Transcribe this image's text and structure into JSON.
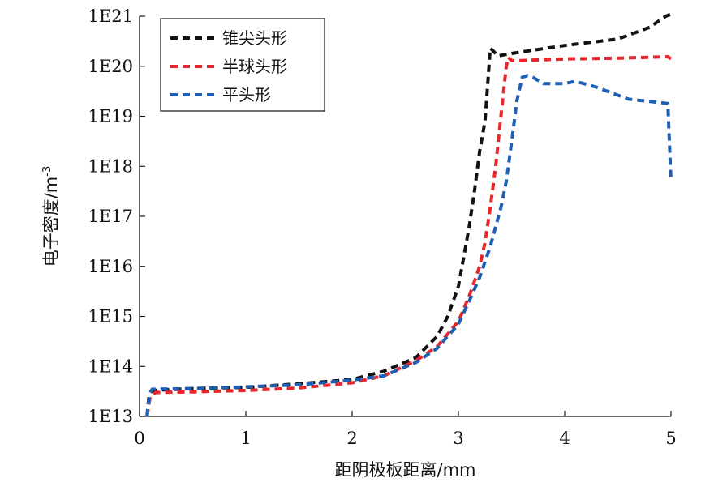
{
  "chart_data": {
    "type": "line",
    "xlabel": "距阴极板距离/mm",
    "ylabel": "电子密度/m",
    "ylabel_sup": "-3",
    "x_scale": "linear",
    "y_scale": "log",
    "xlim": [
      0,
      5
    ],
    "ylim": [
      10000000000000.0,
      1e+21
    ],
    "x_ticks": [
      0,
      1,
      2,
      3,
      4,
      5
    ],
    "x_tick_labels": [
      "0",
      "1",
      "2",
      "3",
      "4",
      "5"
    ],
    "y_ticks": [
      10000000000000.0,
      100000000000000.0,
      1000000000000000.0,
      1e+16,
      1e+17,
      1e+18,
      1e+19,
      1e+20,
      1e+21
    ],
    "y_tick_labels": [
      "1E13",
      "1E14",
      "1E15",
      "1E16",
      "1E17",
      "1E18",
      "1E19",
      "1E20",
      "1E21"
    ],
    "grid": false,
    "legend_position": "top-left",
    "series": [
      {
        "name": "锥尖头形",
        "color": "#111111",
        "x": [
          0.07,
          0.09,
          0.12,
          0.5,
          1.0,
          1.5,
          2.0,
          2.3,
          2.6,
          2.8,
          2.9,
          3.0,
          3.05,
          3.1,
          3.15,
          3.2,
          3.25,
          3.3,
          3.33,
          3.37,
          3.5,
          4.0,
          4.5,
          4.8,
          4.95,
          5.0
        ],
        "y": [
          10000000000000.0,
          25000000000000.0,
          33000000000000.0,
          36000000000000.0,
          38000000000000.0,
          45000000000000.0,
          55000000000000.0,
          80000000000000.0,
          150000000000000.0,
          400000000000000.0,
          1000000000000000.0,
          4000000000000000.0,
          1.5e+16,
          6e+16,
          3e+17,
          2e+18,
          8e+18,
          2.3e+20,
          2e+20,
          1.6e+20,
          1.8e+20,
          2.6e+20,
          3.5e+20,
          6e+20,
          1e+21,
          1.1e+21
        ]
      },
      {
        "name": "半球头形",
        "color": "#e8262b",
        "x": [
          0.07,
          0.1,
          0.15,
          0.5,
          1.0,
          1.5,
          2.0,
          2.3,
          2.6,
          2.8,
          3.0,
          3.1,
          3.2,
          3.25,
          3.3,
          3.35,
          3.4,
          3.45,
          3.47,
          3.5,
          3.6,
          4.0,
          4.5,
          4.97,
          5.0
        ],
        "y": [
          10000000000000.0,
          25000000000000.0,
          30000000000000.0,
          31000000000000.0,
          33000000000000.0,
          37000000000000.0,
          47000000000000.0,
          65000000000000.0,
          130000000000000.0,
          250000000000000.0,
          800000000000000.0,
          2500000000000000.0,
          1e+16,
          3e+16,
          1.5e+17,
          1e+18,
          1e+19,
          1e+20,
          1.5e+20,
          1.3e+20,
          1.3e+20,
          1.4e+20,
          1.45e+20,
          1.55e+20,
          1.4e+20
        ]
      },
      {
        "name": "平头形",
        "color": "#1f5fb4",
        "x": [
          0.07,
          0.09,
          0.12,
          0.5,
          1.0,
          1.5,
          2.0,
          2.3,
          2.6,
          2.8,
          3.0,
          3.1,
          3.2,
          3.3,
          3.4,
          3.45,
          3.5,
          3.55,
          3.6,
          3.65,
          3.7,
          3.8,
          4.0,
          4.1,
          4.3,
          4.6,
          4.97,
          5.0
        ],
        "y": [
          10000000000000.0,
          28000000000000.0,
          35000000000000.0,
          36000000000000.0,
          39000000000000.0,
          43000000000000.0,
          53000000000000.0,
          65000000000000.0,
          120000000000000.0,
          230000000000000.0,
          700000000000000.0,
          2000000000000000.0,
          6000000000000000.0,
          2.5e+16,
          1.5e+17,
          5e+17,
          3e+18,
          2e+19,
          6e+19,
          6.5e+19,
          6e+19,
          4.5e+19,
          4.5e+19,
          5e+19,
          3.8e+19,
          2.2e+19,
          1.8e+19,
          5e+17
        ]
      }
    ]
  }
}
